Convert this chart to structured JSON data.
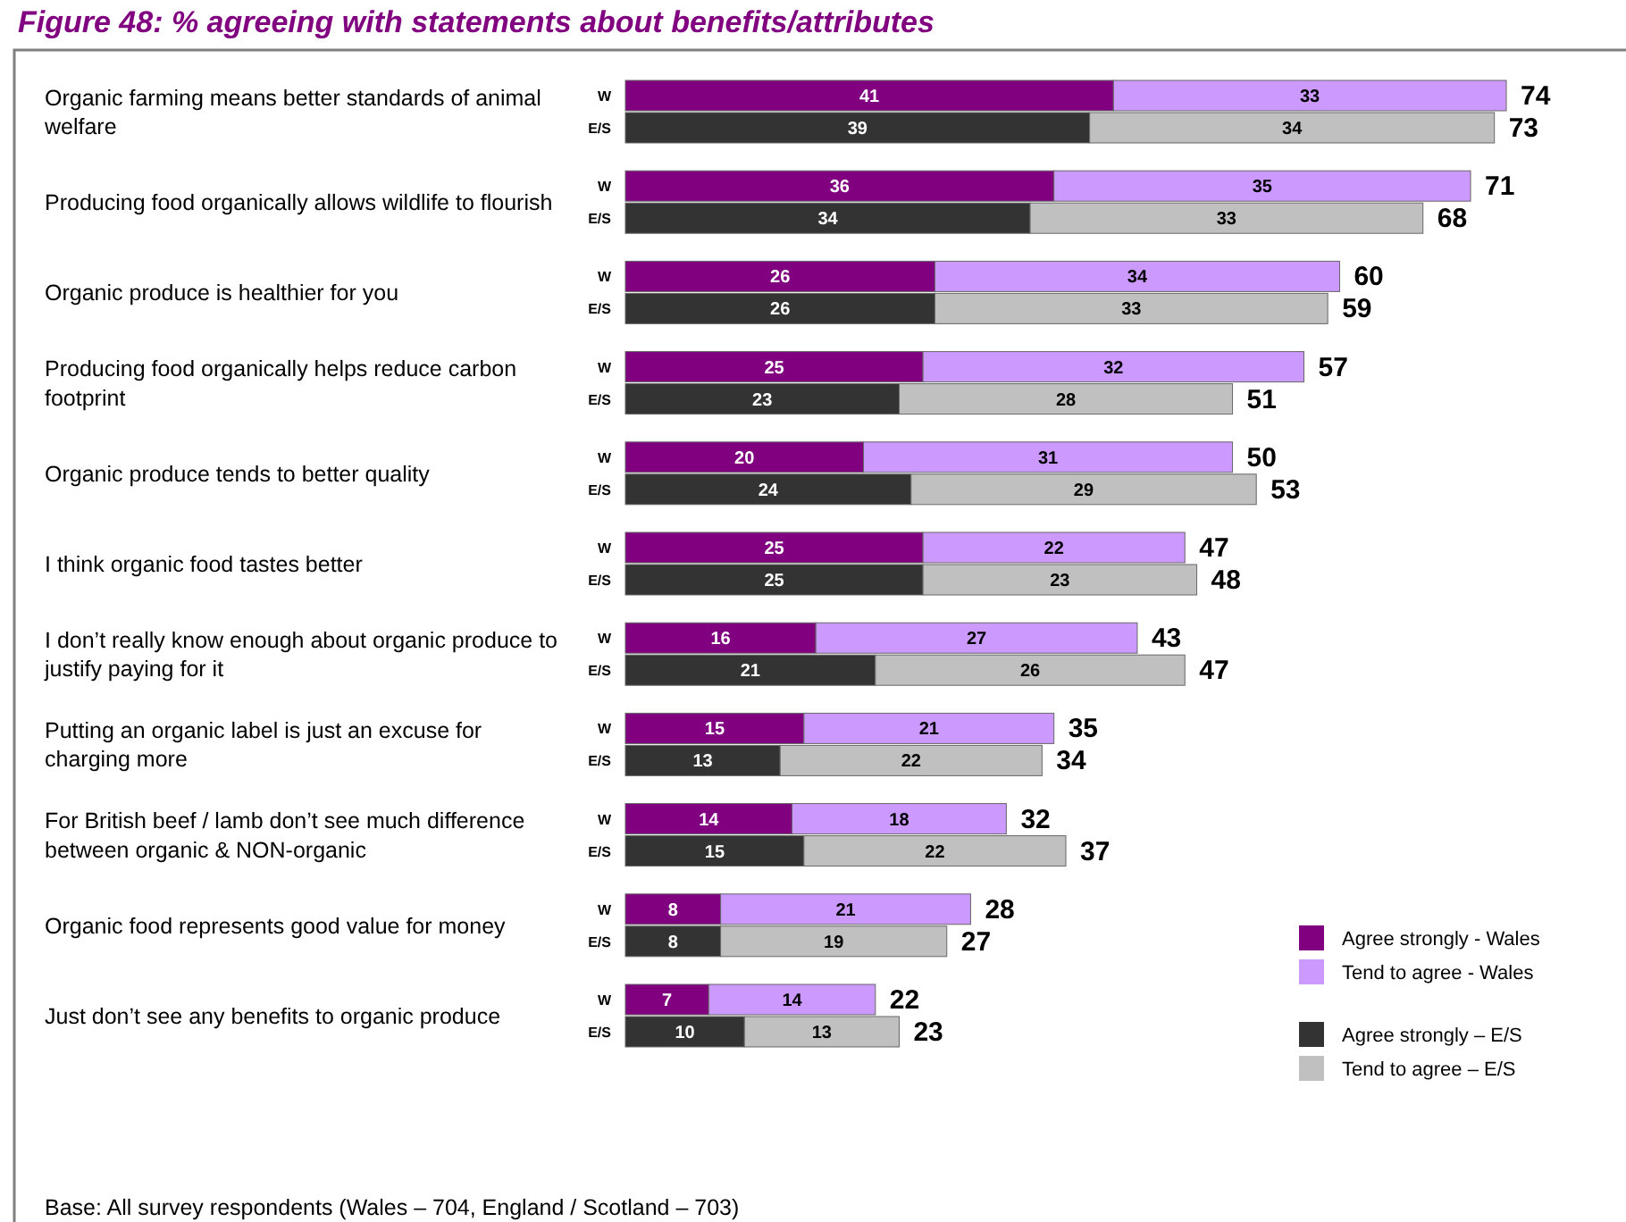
{
  "chart_data": {
    "type": "bar",
    "orientation": "horizontal",
    "stacked": true,
    "title": "Figure 48: % agreeing with statements about benefits/attributes",
    "categories": [
      "W",
      "E/S",
      "W",
      "E/S",
      "W",
      "E/S",
      "W",
      "E/S",
      "W",
      "E/S",
      "W",
      "E/S",
      "W",
      "E/S",
      "W",
      "E/S",
      "W",
      "E/S",
      "W",
      "E/S",
      "W",
      "E/S"
    ],
    "series": [
      {
        "name": "Agree strongly - Wales",
        "color": "#800080",
        "values": [
          41,
          null,
          36,
          null,
          26,
          null,
          25,
          null,
          20,
          null,
          25,
          null,
          16,
          null,
          15,
          null,
          14,
          null,
          8,
          null,
          7,
          null
        ]
      },
      {
        "name": "Tend to agree - Wales",
        "color": "#cc99ff",
        "values": [
          33,
          null,
          35,
          null,
          34,
          null,
          32,
          null,
          31,
          null,
          22,
          null,
          27,
          null,
          21,
          null,
          18,
          null,
          21,
          null,
          14,
          null
        ]
      },
      {
        "name": "Agree strongly – E/S",
        "color": "#333333",
        "values": [
          null,
          39,
          null,
          34,
          null,
          26,
          null,
          23,
          null,
          24,
          null,
          25,
          null,
          21,
          null,
          13,
          null,
          15,
          null,
          8,
          null,
          10
        ]
      },
      {
        "name": "Tend to agree – E/S",
        "color": "#c0c0c0",
        "values": [
          null,
          34,
          null,
          33,
          null,
          33,
          null,
          28,
          null,
          29,
          null,
          23,
          null,
          26,
          null,
          22,
          null,
          22,
          null,
          19,
          null,
          13
        ]
      }
    ],
    "totals": [
      "74",
      "73",
      "71",
      "68",
      "60",
      "59",
      "57",
      "51",
      "50",
      "53",
      "47",
      "48",
      "43",
      "47",
      "35",
      "34",
      "32",
      "37",
      "28",
      "27",
      "22",
      "23"
    ],
    "data_labels": true,
    "tick_labels": "y",
    "legend": "bottom right",
    "annotations": [
      "Organic farming means better standards of animal welfare",
      "Producing food organically allows wildlife to flourish",
      "Organic produce is healthier for you",
      "Producing food organically helps reduce carbon footprint",
      "Organic produce tends to better quality",
      "I think organic food tastes better",
      "I don’t really know enough about organic produce to justify paying for it",
      "Putting an organic label is just an excuse for charging more",
      "For British beef / lamb don’t see much difference between organic & NON-organic",
      "Organic food represents good value for money",
      "Just don’t see any benefits to organic produce",
      "Base: All survey respondents (Wales – 704, England / Scotland – 703)"
    ]
  }
}
